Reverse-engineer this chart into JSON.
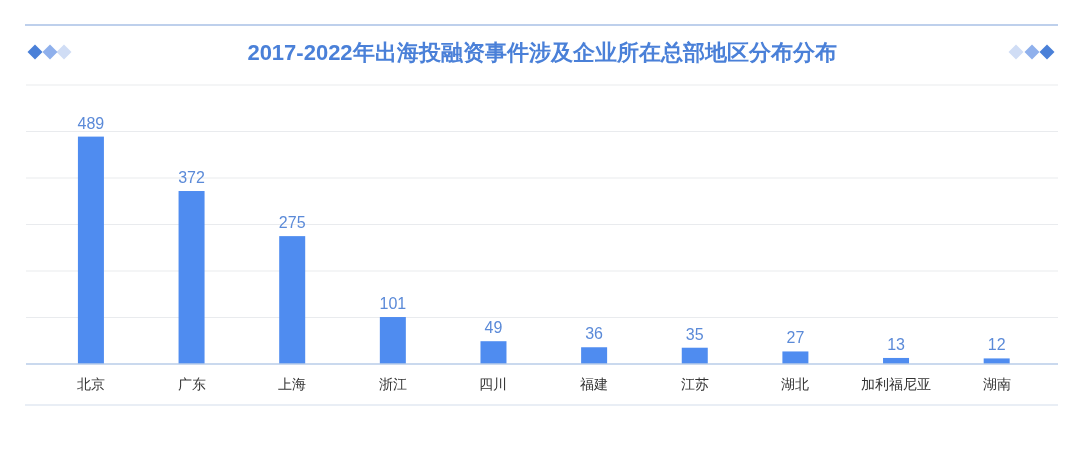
{
  "chart_data": {
    "type": "bar",
    "title": "2017-2022年出海投融资事件涉及企业所在总部地区分布分布",
    "categories": [
      "北京",
      "广东",
      "上海",
      "浙江",
      "四川",
      "福建",
      "江苏",
      "湖北",
      "加利福尼亚",
      "湖南"
    ],
    "values": [
      489,
      372,
      275,
      101,
      49,
      36,
      35,
      27,
      13,
      12
    ],
    "color": "#4f8cf0",
    "ylim": [
      0,
      600
    ],
    "yticks": [
      {
        "value": 0,
        "label": null
      },
      {
        "value": 100,
        "label": null
      },
      {
        "value": 200,
        "label": null
      },
      {
        "value": 300,
        "label": null
      },
      {
        "value": 400,
        "label": null
      },
      {
        "value": 500,
        "label": null
      },
      {
        "value": 600,
        "label": null
      }
    ],
    "grid": "y",
    "tick_labels": "x",
    "data_labels": true
  }
}
